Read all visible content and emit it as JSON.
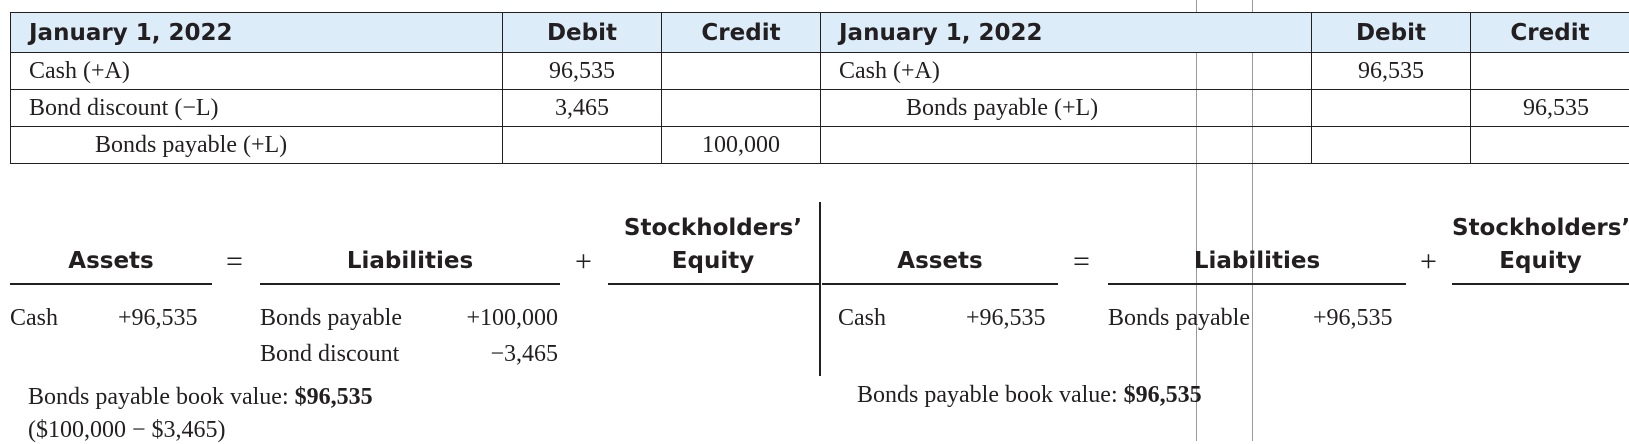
{
  "left_journal": {
    "headers": {
      "date": "January 1, 2022",
      "debit": "Debit",
      "credit": "Credit"
    },
    "rows": [
      {
        "account": "Cash (+A)",
        "debit": "96,535",
        "credit": ""
      },
      {
        "account": "Bond discount (−L)",
        "debit": "3,465",
        "credit": ""
      },
      {
        "account": "Bonds payable (+L)",
        "debit": "",
        "credit": "100,000"
      }
    ]
  },
  "right_journal": {
    "headers": {
      "date": "January 1, 2022",
      "debit": "Debit",
      "credit": "Credit"
    },
    "rows": [
      {
        "account": "Cash (+A)",
        "debit": "96,535",
        "credit": ""
      },
      {
        "account": "Bonds payable (+L)",
        "debit": "",
        "credit": "96,535"
      },
      {
        "account": "",
        "debit": "",
        "credit": ""
      }
    ]
  },
  "left_equation": {
    "assets_label": "Assets",
    "equals": "=",
    "liabilities_label": "Liabilities",
    "plus": "+",
    "equity_label_line1": "Stockholders’",
    "equity_label_line2": "Equity",
    "asset_entries": [
      {
        "name": "Cash",
        "amount": "+96,535"
      }
    ],
    "liability_entries": [
      {
        "name": "Bonds payable",
        "amount": "+100,000"
      },
      {
        "name": "Bond discount",
        "amount": "−3,465"
      }
    ],
    "book_value_label": "Bonds payable book value: ",
    "book_value_amount": "$96,535",
    "book_value_calc": "($100,000 − $3,465)"
  },
  "right_equation": {
    "assets_label": "Assets",
    "equals": "=",
    "liabilities_label": "Liabilities",
    "plus": "+",
    "equity_label_line1": "Stockholders’",
    "equity_label_line2": "Equity",
    "asset_entries": [
      {
        "name": "Cash",
        "amount": "+96,535"
      }
    ],
    "liability_entries": [
      {
        "name": "Bonds payable",
        "amount": "+96,535"
      }
    ],
    "book_value_label": "Bonds payable book value: ",
    "book_value_amount": "$96,535"
  }
}
